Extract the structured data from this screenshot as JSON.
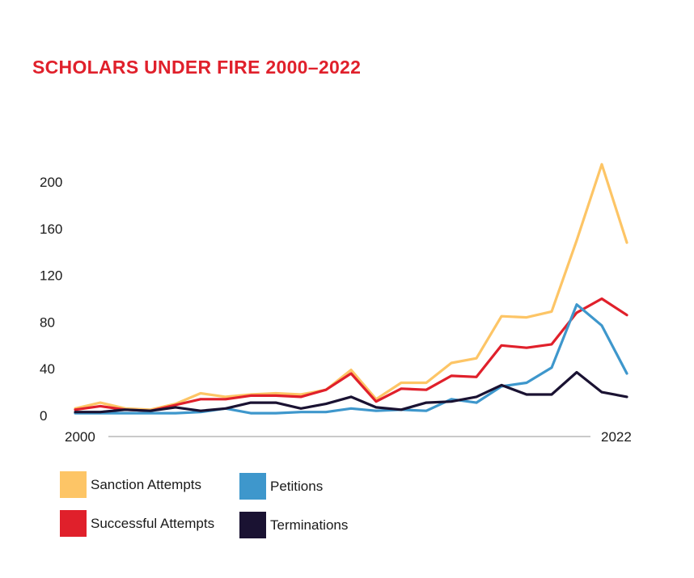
{
  "chart_data": {
    "type": "line",
    "title": "SCHOLARS UNDER FIRE 2000–2022",
    "xlabel": "",
    "ylabel": "",
    "x_start_label": "2000",
    "x_end_label": "2022",
    "x": [
      2000,
      2001,
      2002,
      2003,
      2004,
      2005,
      2006,
      2007,
      2008,
      2009,
      2010,
      2011,
      2012,
      2013,
      2014,
      2015,
      2016,
      2017,
      2018,
      2019,
      2020,
      2021,
      2022
    ],
    "ylim": [
      0,
      200
    ],
    "yticks": [
      "0",
      "40",
      "80",
      "120",
      "160",
      "200"
    ],
    "ytick_values": [
      0,
      40,
      80,
      120,
      160,
      200
    ],
    "grid": false,
    "legend_position": "bottom-left",
    "series": [
      {
        "name": "Sanction Attempts",
        "color": "#fdc566",
        "values": [
          6,
          11,
          6,
          5,
          10,
          19,
          16,
          18,
          19,
          18,
          22,
          39,
          14,
          28,
          28,
          45,
          49,
          85,
          84,
          89,
          150,
          215,
          148
        ]
      },
      {
        "name": "Successful Attempts",
        "color": "#e0202b",
        "values": [
          5,
          8,
          5,
          4,
          9,
          14,
          14,
          17,
          17,
          16,
          22,
          36,
          12,
          23,
          22,
          34,
          33,
          60,
          58,
          61,
          88,
          100,
          86
        ]
      },
      {
        "name": "Petitions",
        "color": "#3e97cc",
        "values": [
          2,
          2,
          2,
          2,
          2,
          3,
          6,
          2,
          2,
          3,
          3,
          6,
          4,
          5,
          4,
          14,
          11,
          25,
          28,
          41,
          95,
          77,
          36
        ]
      },
      {
        "name": "Terminations",
        "color": "#1a1232",
        "values": [
          3,
          3,
          5,
          4,
          7,
          4,
          6,
          11,
          11,
          6,
          10,
          16,
          7,
          5,
          11,
          12,
          16,
          26,
          18,
          18,
          37,
          20,
          16
        ]
      }
    ]
  }
}
